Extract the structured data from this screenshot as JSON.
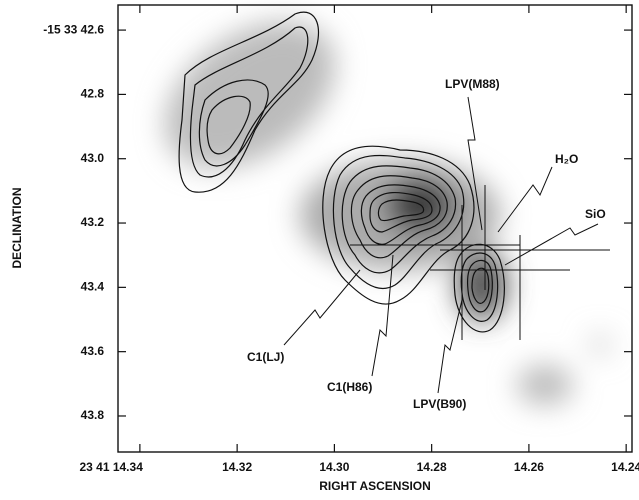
{
  "chart_data": {
    "type": "contour",
    "xlabel": "RIGHT ASCENSION",
    "ylabel": "DECLINATION",
    "xlim": [
      14.3445,
      14.2388
    ],
    "ylim": [
      43.912,
      42.522
    ],
    "xticks": [
      {
        "value": 14.34,
        "label": "23 41 14.34"
      },
      14.32,
      {
        "value": 14.3,
        "label": "14.30"
      },
      14.28,
      14.26,
      14.24
    ],
    "yticks": [
      {
        "value": 42.6,
        "label": "-15 33 42.6"
      },
      42.8,
      {
        "value": 43,
        "label": "43.0"
      },
      43.2,
      43.4,
      43.6,
      43.8
    ],
    "annotations": [
      "LPV(M88)",
      "H₂O",
      "SiO",
      "C1(LJ)",
      "C1(H86)",
      "LPV(B90)"
    ]
  }
}
